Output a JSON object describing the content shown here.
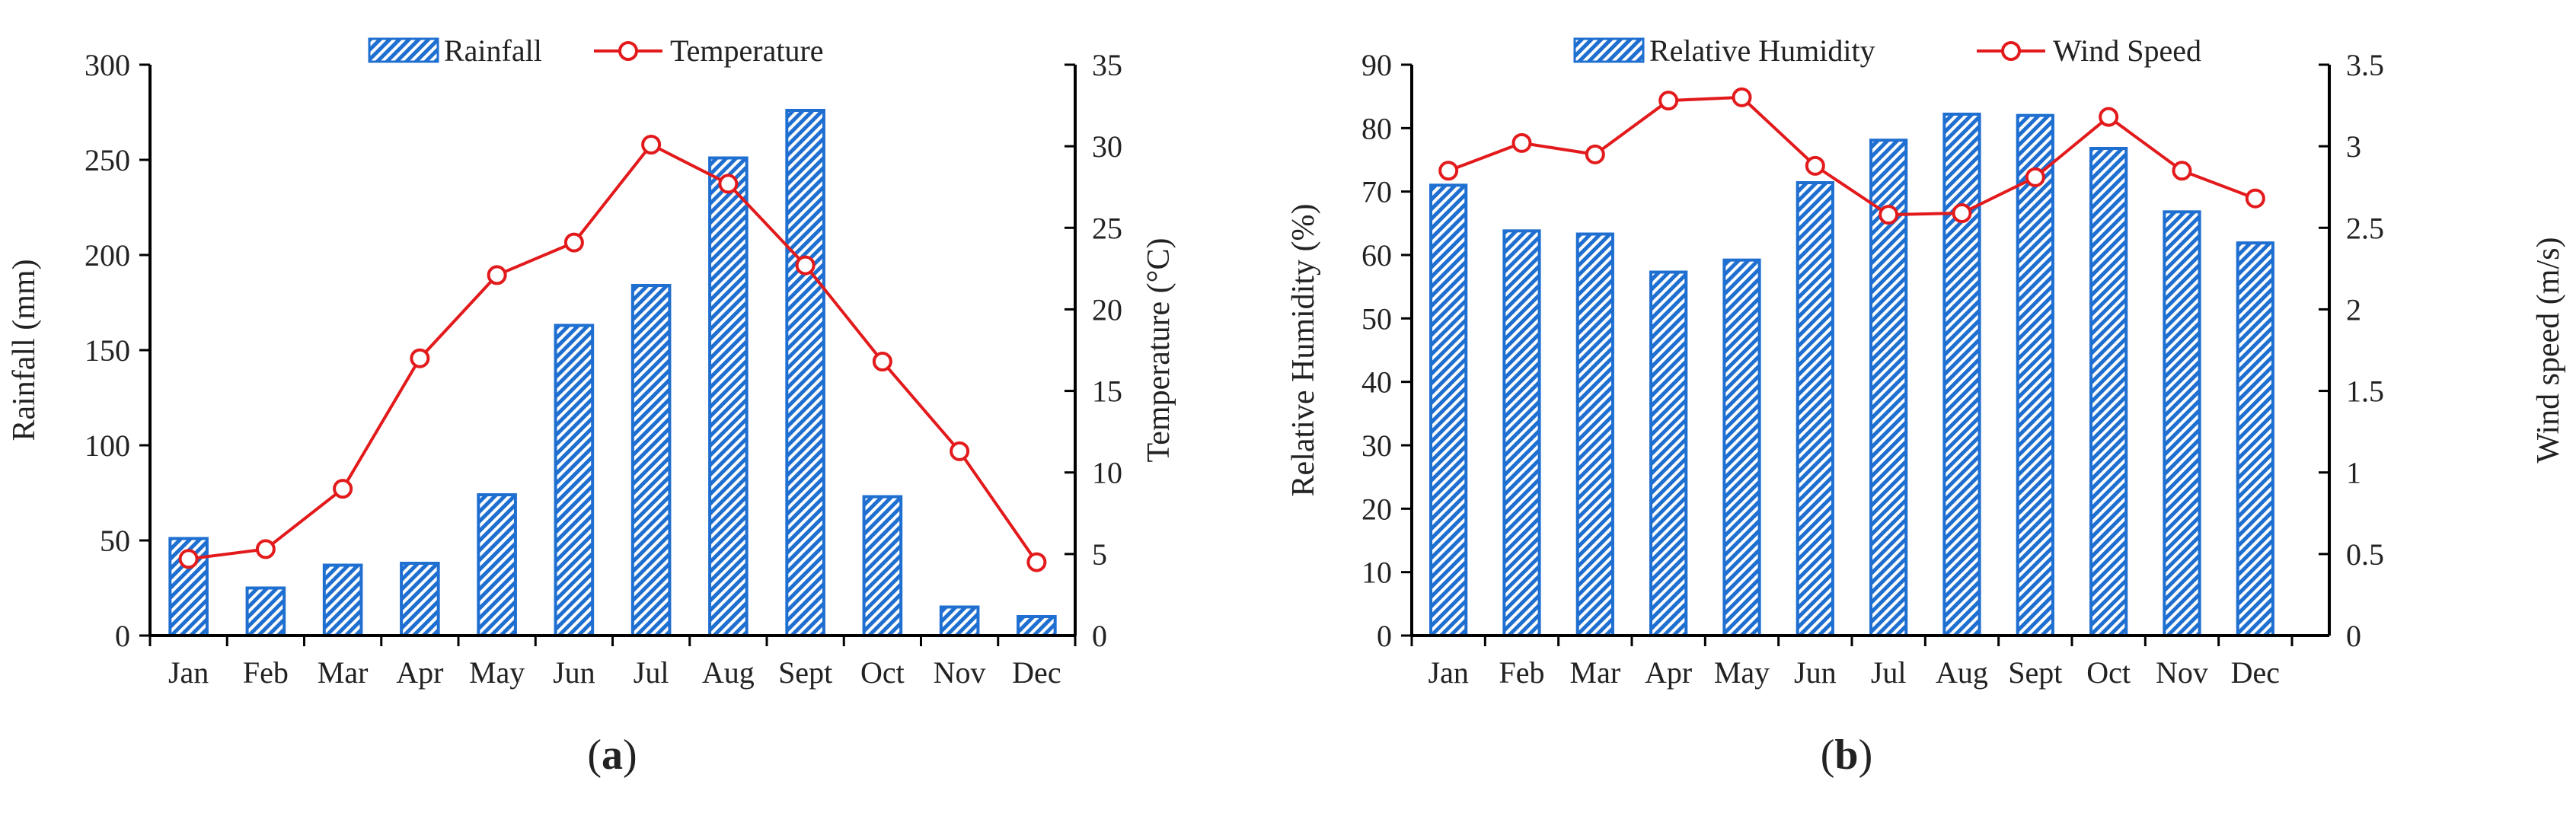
{
  "chart_data": [
    {
      "type": "bar+line",
      "panel_label": "(a)",
      "panel_letter": "a",
      "categories": [
        "Jan",
        "Feb",
        "Mar",
        "Apr",
        "May",
        "Jun",
        "Jul",
        "Aug",
        "Sept",
        "Oct",
        "Nov",
        "Dec"
      ],
      "series": [
        {
          "name": "Rainfall",
          "kind": "bar",
          "axis": "left",
          "values": [
            51,
            25,
            37,
            38,
            74,
            163,
            184,
            251,
            276,
            73,
            15,
            10
          ]
        },
        {
          "name": "Temperature",
          "kind": "line",
          "axis": "right",
          "values": [
            4.7,
            5.3,
            9.0,
            17.0,
            22.1,
            24.1,
            30.1,
            27.7,
            22.7,
            16.8,
            11.3,
            4.5
          ]
        }
      ],
      "ylabel": "Rainfall (mm)",
      "y2label": "Temperature (°C)",
      "ylim": [
        0,
        300
      ],
      "yticks": [
        "0",
        "50",
        "100",
        "150",
        "200",
        "250",
        "300"
      ],
      "y2lim": [
        0,
        35
      ],
      "y2ticks": [
        "0",
        "5",
        "10",
        "15",
        "20",
        "25",
        "30",
        "35"
      ],
      "grid": false,
      "legend": "top-center"
    },
    {
      "type": "bar+line",
      "panel_label": "(b)",
      "panel_letter": "b",
      "categories": [
        "Jan",
        "Feb",
        "Mar",
        "Apr",
        "May",
        "Jun",
        "Jul",
        "Aug",
        "Sept",
        "Oct",
        "Nov",
        "Dec"
      ],
      "series": [
        {
          "name": "Relative Humidity",
          "kind": "bar",
          "axis": "left",
          "values": [
            71.0,
            63.8,
            63.3,
            57.3,
            59.2,
            71.4,
            78.1,
            82.2,
            82.0,
            76.8,
            66.8,
            61.9
          ]
        },
        {
          "name": "Wind Speed",
          "kind": "line",
          "axis": "right",
          "values": [
            2.85,
            3.02,
            2.95,
            3.28,
            3.3,
            2.88,
            2.58,
            2.59,
            2.81,
            3.18,
            2.85,
            2.68
          ]
        }
      ],
      "ylabel": "Relative Humidity (%)",
      "y2label": "Wind speed (m/s)",
      "ylim": [
        0,
        90
      ],
      "yticks": [
        "0",
        "10",
        "20",
        "30",
        "40",
        "50",
        "60",
        "70",
        "80",
        "90"
      ],
      "y2lim": [
        0,
        3.5
      ],
      "y2ticks": [
        "0",
        "0.5",
        "1",
        "1.5",
        "2",
        "2.5",
        "3",
        "3.5"
      ],
      "grid": false,
      "legend": "top-center"
    }
  ],
  "colors": {
    "bar": "#1f6fd1",
    "bar_fill": "#ffffff",
    "line": "#e31a1c",
    "axis": "#000000"
  }
}
